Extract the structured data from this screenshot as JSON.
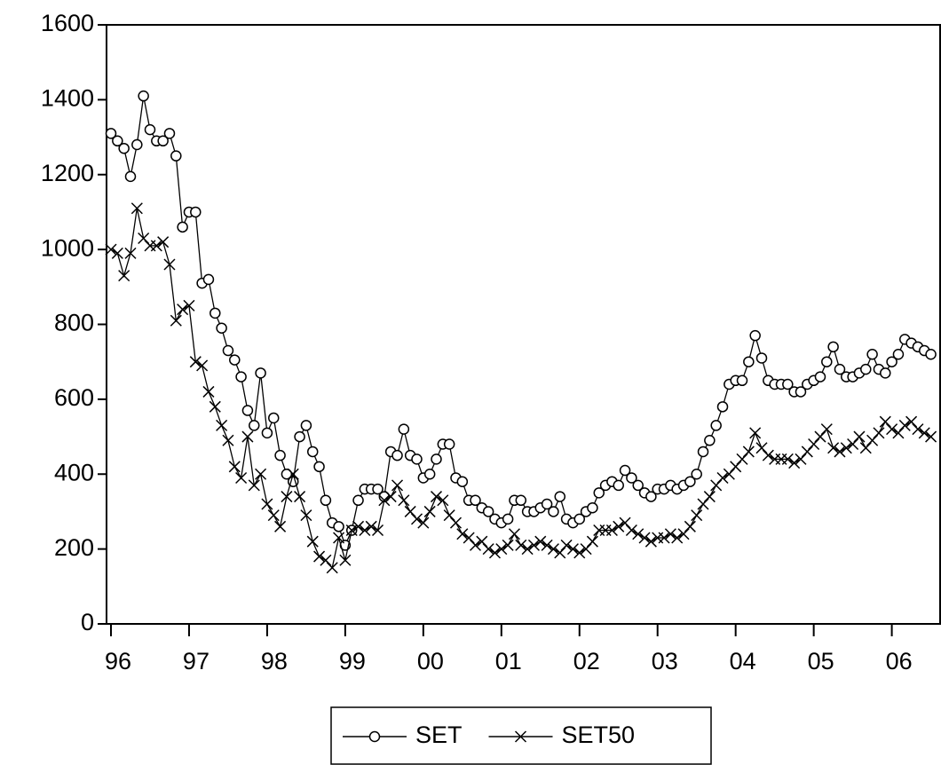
{
  "chart_data": {
    "type": "line",
    "categories": [
      "96",
      null,
      null,
      null,
      null,
      null,
      null,
      null,
      null,
      null,
      null,
      null,
      "97",
      null,
      null,
      null,
      null,
      null,
      null,
      null,
      null,
      null,
      null,
      null,
      "98",
      null,
      null,
      null,
      null,
      null,
      null,
      null,
      null,
      null,
      null,
      null,
      "99",
      null,
      null,
      null,
      null,
      null,
      null,
      null,
      null,
      null,
      null,
      null,
      "00",
      null,
      null,
      null,
      null,
      null,
      null,
      null,
      null,
      null,
      null,
      null,
      "01",
      null,
      null,
      null,
      null,
      null,
      null,
      null,
      null,
      null,
      null,
      null,
      "02",
      null,
      null,
      null,
      null,
      null,
      null,
      null,
      null,
      null,
      null,
      null,
      "03",
      null,
      null,
      null,
      null,
      null,
      null,
      null,
      null,
      null,
      null,
      null,
      "04",
      null,
      null,
      null,
      null,
      null,
      null,
      null,
      null,
      null,
      null,
      null,
      "05",
      null,
      null,
      null,
      null,
      null,
      null,
      null,
      null,
      null,
      null,
      null,
      "06",
      null,
      null,
      null,
      null,
      null,
      null
    ],
    "series": [
      {
        "name": "SET",
        "color": "#000000",
        "marker": "circle",
        "values": [
          1310,
          1290,
          1270,
          1195,
          1280,
          1410,
          1320,
          1290,
          1290,
          1310,
          1250,
          1060,
          1100,
          1100,
          910,
          920,
          830,
          790,
          730,
          705,
          660,
          570,
          530,
          670,
          510,
          550,
          450,
          400,
          380,
          500,
          530,
          460,
          420,
          330,
          270,
          260,
          210,
          250,
          330,
          360,
          360,
          360,
          340,
          460,
          450,
          520,
          450,
          440,
          390,
          400,
          440,
          480,
          480,
          390,
          380,
          330,
          330,
          310,
          300,
          280,
          270,
          280,
          330,
          330,
          300,
          300,
          310,
          320,
          300,
          340,
          280,
          270,
          280,
          300,
          310,
          350,
          370,
          380,
          370,
          410,
          390,
          370,
          350,
          340,
          360,
          360,
          370,
          360,
          370,
          380,
          400,
          460,
          490,
          530,
          580,
          640,
          650,
          650,
          700,
          770,
          710,
          650,
          640,
          640,
          640,
          620,
          620,
          640,
          650,
          660,
          700,
          740,
          680,
          660,
          660,
          670,
          680,
          720,
          680,
          670,
          700,
          720,
          760,
          750,
          740,
          730,
          720
        ]
      },
      {
        "name": "SET50",
        "color": "#000000",
        "marker": "x",
        "values": [
          1000,
          990,
          930,
          990,
          1110,
          1030,
          1010,
          1010,
          1020,
          960,
          810,
          840,
          850,
          700,
          690,
          620,
          580,
          530,
          490,
          420,
          390,
          500,
          370,
          400,
          320,
          290,
          260,
          340,
          400,
          340,
          290,
          220,
          180,
          170,
          150,
          230,
          170,
          250,
          260,
          250,
          260,
          250,
          330,
          340,
          370,
          330,
          300,
          280,
          270,
          300,
          340,
          330,
          290,
          270,
          240,
          230,
          210,
          220,
          200,
          190,
          200,
          210,
          240,
          210,
          200,
          210,
          220,
          210,
          200,
          190,
          210,
          200,
          190,
          200,
          220,
          250,
          250,
          250,
          260,
          270,
          250,
          240,
          230,
          220,
          230,
          230,
          240,
          230,
          240,
          260,
          290,
          320,
          340,
          370,
          390,
          400,
          420,
          440,
          460,
          510,
          470,
          450,
          440,
          440,
          440,
          430,
          440,
          460,
          480,
          500,
          520,
          470,
          460,
          470,
          480,
          500,
          470,
          490,
          510,
          540,
          520,
          510,
          530,
          540,
          520,
          510,
          500
        ]
      }
    ],
    "ylim": [
      0,
      1600
    ],
    "yticks": [
      0,
      200,
      400,
      600,
      800,
      1000,
      1200,
      1400,
      1600
    ],
    "grid": false,
    "legend": "bottom"
  }
}
